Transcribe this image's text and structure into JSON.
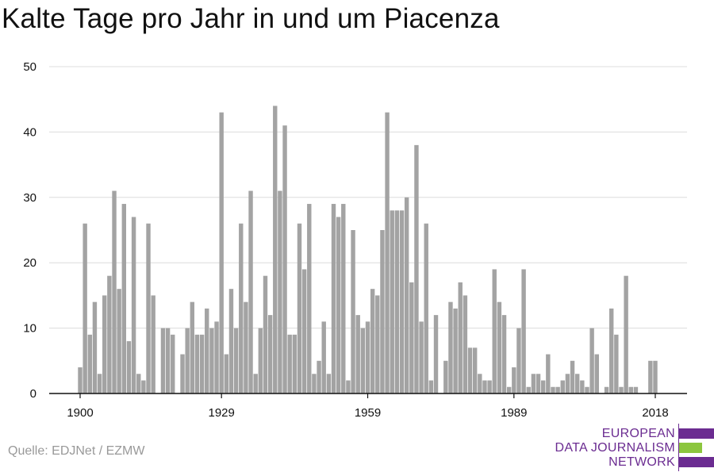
{
  "header": {
    "title": "Kalte Tage pro Jahr in und um Piacenza"
  },
  "footer": {
    "source": "Quelle: EDJNet / EZMW",
    "logo": {
      "line1": "EUROPEAN",
      "line2": "DATA JOURNALISM",
      "line3": "NETWORK",
      "colors": {
        "purple": "#6b2c91",
        "green": "#8cc63e"
      }
    }
  },
  "chart_data": {
    "type": "bar",
    "title": "Kalte Tage pro Jahr in und um Piacenza",
    "xlabel": "",
    "ylabel": "",
    "x_ticks": [
      1900,
      1929,
      1959,
      1989,
      2018
    ],
    "y_ticks": [
      0,
      10,
      20,
      30,
      40,
      50
    ],
    "ylim": [
      0,
      50
    ],
    "xlim": [
      1900,
      2018
    ],
    "grid": true,
    "bar_color": "#a3a3a3",
    "categories": [
      1900,
      1901,
      1902,
      1903,
      1904,
      1905,
      1906,
      1907,
      1908,
      1909,
      1910,
      1911,
      1912,
      1913,
      1914,
      1915,
      1916,
      1917,
      1918,
      1919,
      1920,
      1921,
      1922,
      1923,
      1924,
      1925,
      1926,
      1927,
      1928,
      1929,
      1930,
      1931,
      1932,
      1933,
      1934,
      1935,
      1936,
      1937,
      1938,
      1939,
      1940,
      1941,
      1942,
      1943,
      1944,
      1945,
      1946,
      1947,
      1948,
      1949,
      1950,
      1951,
      1952,
      1953,
      1954,
      1955,
      1956,
      1957,
      1958,
      1959,
      1960,
      1961,
      1962,
      1963,
      1964,
      1965,
      1966,
      1967,
      1968,
      1969,
      1970,
      1971,
      1972,
      1973,
      1974,
      1975,
      1976,
      1977,
      1978,
      1979,
      1980,
      1981,
      1982,
      1983,
      1984,
      1985,
      1986,
      1987,
      1988,
      1989,
      1990,
      1991,
      1992,
      1993,
      1994,
      1995,
      1996,
      1997,
      1998,
      1999,
      2000,
      2001,
      2002,
      2003,
      2004,
      2005,
      2006,
      2007,
      2008,
      2009,
      2010,
      2011,
      2012,
      2013,
      2014,
      2015,
      2016,
      2017,
      2018
    ],
    "values": [
      4,
      26,
      9,
      14,
      3,
      15,
      18,
      31,
      16,
      29,
      8,
      27,
      3,
      2,
      26,
      15,
      0,
      10,
      10,
      9,
      0,
      6,
      10,
      14,
      9,
      9,
      13,
      10,
      11,
      43,
      6,
      16,
      10,
      26,
      14,
      31,
      3,
      10,
      18,
      12,
      44,
      31,
      41,
      9,
      9,
      26,
      19,
      29,
      3,
      5,
      11,
      3,
      29,
      27,
      29,
      2,
      25,
      12,
      10,
      11,
      16,
      15,
      25,
      43,
      28,
      28,
      28,
      30,
      17,
      38,
      11,
      26,
      2,
      12,
      0,
      5,
      14,
      13,
      17,
      15,
      7,
      7,
      3,
      2,
      2,
      19,
      14,
      12,
      1,
      4,
      10,
      19,
      1,
      3,
      3,
      2,
      6,
      1,
      1,
      2,
      3,
      5,
      3,
      2,
      1,
      10,
      6,
      0,
      1,
      13,
      9,
      1,
      18,
      1,
      1,
      0,
      0,
      5,
      5
    ]
  }
}
